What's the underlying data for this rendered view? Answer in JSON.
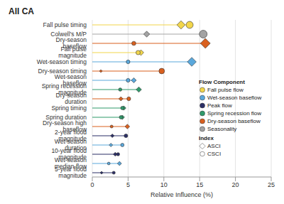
{
  "chart_data": {
    "type": "lollipop",
    "title": "All CA",
    "orientation": "horizontal",
    "x_label": "Relative Influence (%)",
    "categories": [
      "Fall pulse timing",
      "Colwell's M/P",
      "Dry-season baseflow",
      "Fall pulse magnitude",
      "Wet-season timing",
      "Dry-season timing",
      "Wet-season baseflow",
      "Spring recession magnitude",
      "Dry-season duration",
      "Spring timing",
      "Spring duration",
      "Dry-season high baseflow",
      "2-year flood magnitude",
      "Wet-season duration",
      "10-year flood magnitude",
      "Wet-season median flow",
      "5-year flood magnitude"
    ],
    "category_components": [
      "Fall pulse flow",
      "Seasonality",
      "Dry-season baseflow",
      "Fall pulse flow",
      "Wet-season baseflow",
      "Dry-season baseflow",
      "Wet-season baseflow",
      "Spring recession flow",
      "Dry-season baseflow",
      "Spring recession flow",
      "Spring recession flow",
      "Dry-season baseflow",
      "Peak flow",
      "Wet-season baseflow",
      "Peak flow",
      "Wet-season baseflow",
      "Peak flow"
    ],
    "components_title": "Flow Component",
    "components": [
      {
        "name": "Fall pulse flow",
        "color": "#f2d64b"
      },
      {
        "name": "Wet-season baseflow",
        "color": "#5aa8dc"
      },
      {
        "name": "Peak flow",
        "color": "#2b2f66"
      },
      {
        "name": "Spring recession flow",
        "color": "#2f9a6a"
      },
      {
        "name": "Dry-season baseflow",
        "color": "#d9601f"
      },
      {
        "name": "Seasonality",
        "color": "#a3a3a3"
      }
    ],
    "series_title": "Index",
    "series": [
      {
        "name": "ASCI",
        "marker": "diamond",
        "values": [
          12.4,
          7.6,
          15.8,
          6.8,
          13.9,
          1.2,
          5.8,
          6.5,
          4.0,
          4.4,
          4.2,
          4.9,
          2.8,
          2.6,
          3.2,
          3.8,
          1.3
        ]
      },
      {
        "name": "CSCI",
        "marker": "circle",
        "values": [
          13.6,
          15.5,
          5.8,
          6.4,
          5.0,
          9.7,
          5.0,
          3.9,
          5.1,
          4.2,
          4.0,
          2.7,
          4.7,
          4.2,
          3.6,
          2.3,
          3.0
        ]
      }
    ],
    "xlim": [
      0,
      25
    ],
    "xticks": [
      0,
      5,
      10,
      15,
      20,
      25
    ],
    "grid": true,
    "legend": "lower right"
  }
}
